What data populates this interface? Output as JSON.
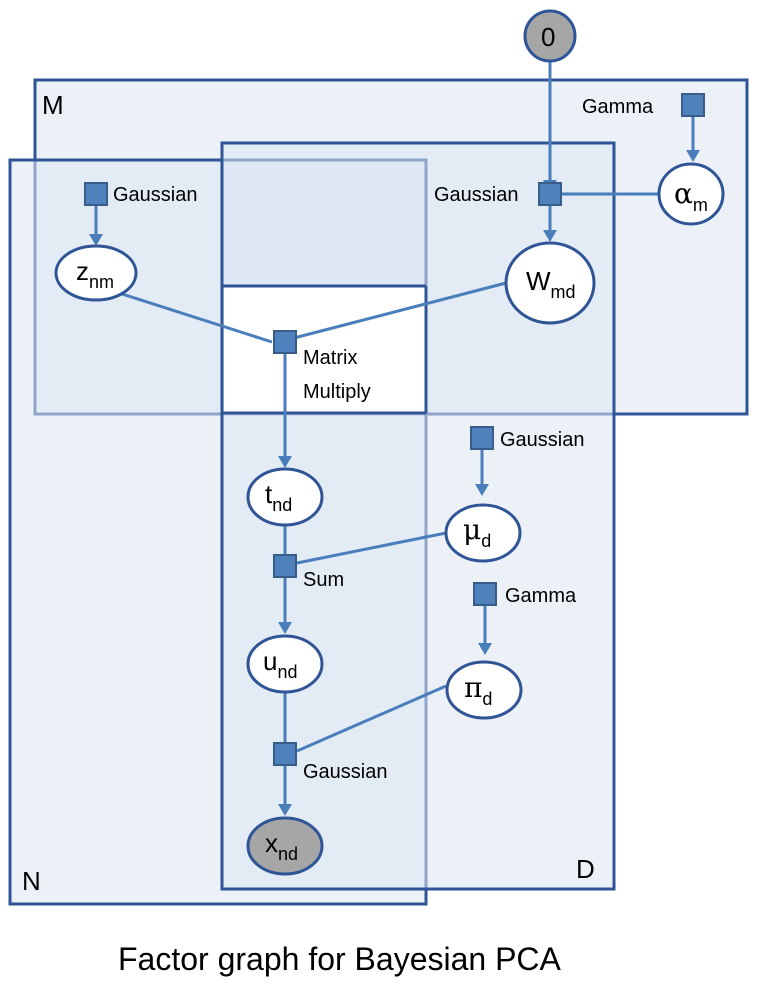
{
  "plates": {
    "M": "M",
    "N": "N",
    "D": "D"
  },
  "constant_node": "0",
  "nodes": {
    "z": {
      "main": "z",
      "sub": "nm"
    },
    "W": {
      "main": "W",
      "sub": "md"
    },
    "alpha": {
      "main": "α",
      "sub": "m"
    },
    "t": {
      "main": "t",
      "sub": "nd"
    },
    "mu": {
      "main": "μ",
      "sub": "d"
    },
    "u": {
      "main": "u",
      "sub": "nd"
    },
    "pi": {
      "main": "π",
      "sub": "d"
    },
    "x": {
      "main": "x",
      "sub": "nd"
    }
  },
  "factors": {
    "gamma_alpha": "Gamma",
    "gaussian_z": "Gaussian",
    "gaussian_W": "Gaussian",
    "matrix_multiply_line1": "Matrix",
    "matrix_multiply_line2": "Multiply",
    "gaussian_mu": "Gaussian",
    "sum": "Sum",
    "gamma_pi": "Gamma",
    "gaussian_x": "Gaussian"
  },
  "caption": "Factor graph for Bayesian PCA",
  "colors": {
    "plate_fill": "#dce6f2",
    "plate_stroke": "#2f5597",
    "factor_fill": "#4f81bd",
    "edge": "#4a7ebb",
    "observed_node": "#a6a6a6"
  }
}
